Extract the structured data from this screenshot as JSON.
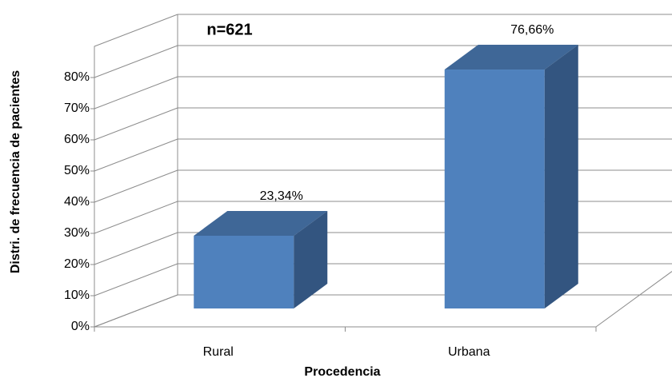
{
  "chart_data": {
    "type": "bar3d",
    "title": "n=621",
    "categories": [
      "Rural",
      "Urbana"
    ],
    "values": [
      23.34,
      76.66
    ],
    "value_labels": [
      "23,34%",
      "76,66%"
    ],
    "color": "#4f81bd",
    "ylim": [
      0,
      90
    ],
    "yticks": [
      {
        "value": 0,
        "label": "0%"
      },
      {
        "value": 10,
        "label": "10%"
      },
      {
        "value": 20,
        "label": "20%"
      },
      {
        "value": 30,
        "label": "30%"
      },
      {
        "value": 40,
        "label": "40%"
      },
      {
        "value": 50,
        "label": "50%"
      },
      {
        "value": 60,
        "label": "60%"
      },
      {
        "value": 70,
        "label": "70%"
      },
      {
        "value": 80,
        "label": "80%"
      }
    ],
    "y_label": "Distri. de frecuencia de pacientes",
    "x_label": "Procedencia",
    "grid": true
  }
}
